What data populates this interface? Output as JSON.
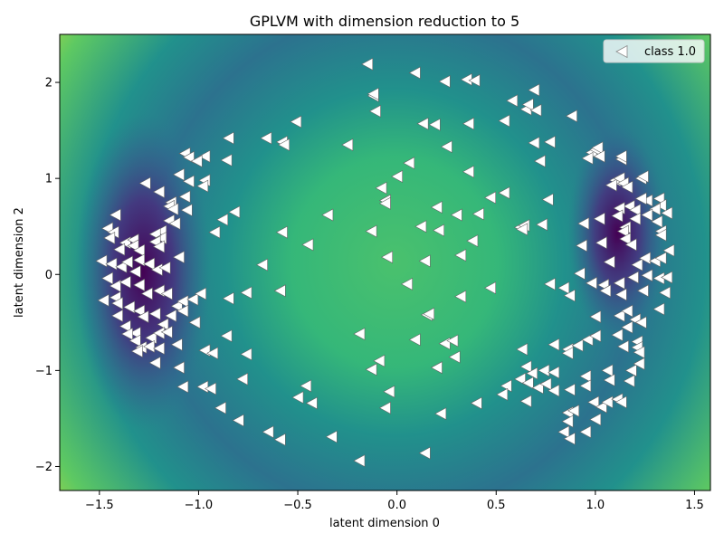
{
  "chart_data": {
    "type": "scatter",
    "title": "GPLVM with dimension reduction to 5",
    "xlabel": "latent dimension 0",
    "ylabel": "latent dimension 2",
    "xlim": [
      -1.7,
      1.58
    ],
    "ylim": [
      -2.25,
      2.5
    ],
    "xticks": [
      -1.5,
      -1.0,
      -0.5,
      0.0,
      0.5,
      1.0,
      1.5
    ],
    "xtick_labels": [
      "−1.5",
      "−1.0",
      "−0.5",
      "0.0",
      "0.5",
      "1.0",
      "1.5"
    ],
    "yticks": [
      -2,
      -1,
      0,
      1,
      2
    ],
    "ytick_labels": [
      "−2",
      "−1",
      "0",
      "1",
      "2"
    ],
    "grid": false,
    "background": "viridis density heatmap (dark purple at the ring near x≈±1.2, green center, yellow corners)",
    "marker": "left-pointing triangle, white fill, grey edge",
    "legend": {
      "placement": "top-right",
      "entries": [
        "class 1.0"
      ]
    },
    "series": [
      {
        "name": "class 1.0",
        "points": [
          [
            -0.15,
            2.19
          ],
          [
            0.09,
            2.1
          ],
          [
            0.24,
            2.01
          ],
          [
            0.35,
            2.03
          ],
          [
            0.39,
            2.02
          ],
          [
            0.58,
            1.81
          ],
          [
            0.69,
            1.92
          ],
          [
            -0.12,
            1.86
          ],
          [
            -0.12,
            1.88
          ],
          [
            -0.51,
            1.59
          ],
          [
            0.13,
            1.57
          ],
          [
            0.19,
            1.56
          ],
          [
            0.36,
            1.57
          ],
          [
            0.54,
            1.6
          ],
          [
            -0.11,
            1.7
          ],
          [
            0.65,
            1.72
          ],
          [
            0.66,
            1.77
          ],
          [
            0.7,
            1.71
          ],
          [
            0.88,
            1.65
          ],
          [
            -0.66,
            1.42
          ],
          [
            -0.58,
            1.38
          ],
          [
            -0.57,
            1.35
          ],
          [
            -0.25,
            1.35
          ],
          [
            0.25,
            1.33
          ],
          [
            0.69,
            1.37
          ],
          [
            0.77,
            1.38
          ],
          [
            -0.85,
            1.42
          ],
          [
            -1.07,
            1.26
          ],
          [
            -1.05,
            1.22
          ],
          [
            -0.97,
            1.23
          ],
          [
            -1.01,
            1.18
          ],
          [
            -0.86,
            1.19
          ],
          [
            0.06,
            1.16
          ],
          [
            0.72,
            1.18
          ],
          [
            0.98,
            1.27
          ],
          [
            1.0,
            1.3
          ],
          [
            1.01,
            1.32
          ],
          [
            -1.1,
            1.04
          ],
          [
            -1.05,
            0.97
          ],
          [
            -0.97,
            0.98
          ],
          [
            -0.98,
            0.92
          ],
          [
            -1.27,
            0.95
          ],
          [
            -1.2,
            0.86
          ],
          [
            0.0,
            1.02
          ],
          [
            0.36,
            1.07
          ],
          [
            0.96,
            1.21
          ],
          [
            1.02,
            1.23
          ],
          [
            1.13,
            1.2
          ],
          [
            1.13,
            1.23
          ],
          [
            1.1,
            0.98
          ],
          [
            1.08,
            0.93
          ],
          [
            1.12,
            1.0
          ],
          [
            1.14,
            0.95
          ],
          [
            1.23,
            1.0
          ],
          [
            1.24,
            1.02
          ],
          [
            1.16,
            0.91
          ],
          [
            -1.07,
            0.81
          ],
          [
            -1.14,
            0.75
          ],
          [
            -1.15,
            0.71
          ],
          [
            -1.06,
            0.67
          ],
          [
            -1.13,
            0.68
          ],
          [
            -0.82,
            0.65
          ],
          [
            -0.88,
            0.57
          ],
          [
            -0.35,
            0.62
          ],
          [
            -0.08,
            0.9
          ],
          [
            -0.06,
            0.77
          ],
          [
            -0.06,
            0.74
          ],
          [
            0.2,
            0.7
          ],
          [
            0.3,
            0.62
          ],
          [
            0.47,
            0.8
          ],
          [
            0.54,
            0.85
          ],
          [
            0.76,
            0.78
          ],
          [
            1.17,
            0.71
          ],
          [
            1.12,
            0.69
          ],
          [
            1.2,
            0.67
          ],
          [
            1.26,
            0.77
          ],
          [
            1.23,
            0.79
          ],
          [
            1.32,
            0.79
          ],
          [
            1.33,
            0.72
          ],
          [
            1.3,
            0.68
          ],
          [
            1.36,
            0.64
          ],
          [
            -1.42,
            0.62
          ],
          [
            -1.46,
            0.48
          ],
          [
            -1.43,
            0.44
          ],
          [
            -1.15,
            0.56
          ],
          [
            -1.12,
            0.53
          ],
          [
            -1.19,
            0.45
          ],
          [
            -1.22,
            0.42
          ],
          [
            -1.19,
            0.38
          ],
          [
            -0.92,
            0.44
          ],
          [
            -0.58,
            0.44
          ],
          [
            -0.13,
            0.45
          ],
          [
            0.12,
            0.5
          ],
          [
            0.21,
            0.46
          ],
          [
            0.41,
            0.63
          ],
          [
            0.62,
            0.49
          ],
          [
            0.64,
            0.51
          ],
          [
            0.63,
            0.47
          ],
          [
            0.73,
            0.52
          ],
          [
            0.94,
            0.53
          ],
          [
            1.02,
            0.58
          ],
          [
            1.11,
            0.61
          ],
          [
            1.15,
            0.49
          ],
          [
            1.14,
            0.45
          ],
          [
            1.2,
            0.58
          ],
          [
            1.26,
            0.62
          ],
          [
            1.31,
            0.55
          ],
          [
            1.33,
            0.45
          ],
          [
            1.33,
            0.41
          ],
          [
            -1.45,
            0.38
          ],
          [
            -1.37,
            0.33
          ],
          [
            -1.33,
            0.36
          ],
          [
            -1.4,
            0.26
          ],
          [
            -1.33,
            0.3
          ],
          [
            -1.3,
            0.25
          ],
          [
            -1.22,
            0.34
          ],
          [
            -1.2,
            0.29
          ],
          [
            -0.45,
            0.31
          ],
          [
            0.38,
            0.35
          ],
          [
            0.93,
            0.3
          ],
          [
            1.03,
            0.33
          ],
          [
            1.15,
            0.37
          ],
          [
            1.18,
            0.31
          ],
          [
            1.37,
            0.25
          ],
          [
            -1.49,
            0.14
          ],
          [
            -1.44,
            0.11
          ],
          [
            -1.39,
            0.08
          ],
          [
            -1.36,
            0.13
          ],
          [
            -1.3,
            0.15
          ],
          [
            -1.25,
            0.11
          ],
          [
            -1.21,
            0.05
          ],
          [
            -1.17,
            0.07
          ],
          [
            -1.1,
            0.18
          ],
          [
            -0.68,
            0.1
          ],
          [
            -0.05,
            0.18
          ],
          [
            0.14,
            0.14
          ],
          [
            0.32,
            0.2
          ],
          [
            1.07,
            0.13
          ],
          [
            1.21,
            0.1
          ],
          [
            1.25,
            0.17
          ],
          [
            1.3,
            0.14
          ],
          [
            1.33,
            0.17
          ],
          [
            -1.46,
            -0.04
          ],
          [
            -1.42,
            -0.12
          ],
          [
            -1.37,
            -0.08
          ],
          [
            -1.32,
            0.03
          ],
          [
            -1.3,
            -0.11
          ],
          [
            0.92,
            0.01
          ],
          [
            0.98,
            -0.09
          ],
          [
            1.04,
            -0.11
          ],
          [
            1.12,
            -0.09
          ],
          [
            1.19,
            -0.03
          ],
          [
            1.26,
            -0.01
          ],
          [
            1.32,
            -0.04
          ],
          [
            1.36,
            -0.03
          ],
          [
            -1.48,
            -0.27
          ],
          [
            -1.42,
            -0.24
          ],
          [
            -1.41,
            -0.3
          ],
          [
            -1.35,
            -0.34
          ],
          [
            -1.3,
            -0.38
          ],
          [
            -1.26,
            -0.2
          ],
          [
            -1.2,
            -0.17
          ],
          [
            -1.16,
            -0.2
          ],
          [
            -1.11,
            -0.33
          ],
          [
            -1.08,
            -0.28
          ],
          [
            -1.03,
            -0.26
          ],
          [
            -0.99,
            -0.2
          ],
          [
            -0.85,
            -0.25
          ],
          [
            -0.76,
            -0.19
          ],
          [
            -0.59,
            -0.17
          ],
          [
            0.05,
            -0.1
          ],
          [
            0.32,
            -0.23
          ],
          [
            0.47,
            -0.14
          ],
          [
            0.77,
            -0.1
          ],
          [
            0.84,
            -0.14
          ],
          [
            0.87,
            -0.22
          ],
          [
            1.05,
            -0.17
          ],
          [
            1.13,
            -0.21
          ],
          [
            1.24,
            -0.17
          ],
          [
            1.35,
            -0.19
          ],
          [
            -1.41,
            -0.43
          ],
          [
            -1.37,
            -0.54
          ],
          [
            -1.32,
            -0.61
          ],
          [
            -1.28,
            -0.44
          ],
          [
            -1.22,
            -0.41
          ],
          [
            -1.18,
            -0.52
          ],
          [
            -1.14,
            -0.43
          ],
          [
            -1.08,
            -0.38
          ],
          [
            -1.02,
            -0.5
          ],
          [
            0.15,
            -0.42
          ],
          [
            0.16,
            -0.41
          ],
          [
            1.0,
            -0.44
          ],
          [
            1.12,
            -0.43
          ],
          [
            1.16,
            -0.38
          ],
          [
            1.2,
            -0.47
          ],
          [
            1.23,
            -0.5
          ],
          [
            1.32,
            -0.36
          ],
          [
            -1.36,
            -0.62
          ],
          [
            -1.32,
            -0.69
          ],
          [
            -1.24,
            -0.66
          ],
          [
            -1.2,
            -0.61
          ],
          [
            -1.16,
            -0.6
          ],
          [
            -1.29,
            -0.76
          ],
          [
            -1.25,
            -0.75
          ],
          [
            -1.2,
            -0.77
          ],
          [
            -1.11,
            -0.73
          ],
          [
            -0.97,
            -0.79
          ],
          [
            -0.86,
            -0.64
          ],
          [
            -0.76,
            -0.83
          ],
          [
            -0.19,
            -0.62
          ],
          [
            0.09,
            -0.68
          ],
          [
            0.24,
            -0.72
          ],
          [
            0.28,
            -0.69
          ],
          [
            0.63,
            -0.78
          ],
          [
            0.79,
            -0.73
          ],
          [
            0.86,
            -0.78
          ],
          [
            0.86,
            -0.82
          ],
          [
            0.91,
            -0.74
          ],
          [
            0.96,
            -0.68
          ],
          [
            1.0,
            -0.64
          ],
          [
            1.11,
            -0.63
          ],
          [
            1.16,
            -0.55
          ],
          [
            1.14,
            -0.75
          ],
          [
            1.21,
            -0.7
          ],
          [
            1.21,
            -0.76
          ],
          [
            1.22,
            -0.81
          ],
          [
            -1.31,
            -0.8
          ],
          [
            -1.22,
            -0.92
          ],
          [
            -1.1,
            -0.97
          ],
          [
            -0.93,
            -0.82
          ],
          [
            -0.78,
            -1.09
          ],
          [
            -0.13,
            -0.99
          ],
          [
            -0.09,
            -0.9
          ],
          [
            0.2,
            -0.97
          ],
          [
            0.29,
            -0.86
          ],
          [
            0.65,
            -0.96
          ],
          [
            0.68,
            -1.03
          ],
          [
            0.74,
            -1.0
          ],
          [
            0.79,
            -1.02
          ],
          [
            0.95,
            -1.06
          ],
          [
            1.06,
            -1.0
          ],
          [
            1.18,
            -1.0
          ],
          [
            1.22,
            -0.93
          ],
          [
            -1.08,
            -1.17
          ],
          [
            -0.98,
            -1.17
          ],
          [
            -0.94,
            -1.19
          ],
          [
            -0.46,
            -1.16
          ],
          [
            -0.5,
            -1.28
          ],
          [
            -0.43,
            -1.34
          ],
          [
            -0.04,
            -1.22
          ],
          [
            0.55,
            -1.16
          ],
          [
            0.62,
            -1.09
          ],
          [
            0.66,
            -1.13
          ],
          [
            0.71,
            -1.18
          ],
          [
            0.75,
            -1.14
          ],
          [
            0.79,
            -1.21
          ],
          [
            0.87,
            -1.2
          ],
          [
            0.95,
            -1.16
          ],
          [
            1.07,
            -1.1
          ],
          [
            1.17,
            -1.11
          ],
          [
            -0.89,
            -1.39
          ],
          [
            -0.8,
            -1.52
          ],
          [
            -0.06,
            -1.39
          ],
          [
            0.22,
            -1.45
          ],
          [
            0.4,
            -1.34
          ],
          [
            0.53,
            -1.25
          ],
          [
            0.65,
            -1.32
          ],
          [
            0.86,
            -1.44
          ],
          [
            0.89,
            -1.42
          ],
          [
            0.99,
            -1.33
          ],
          [
            1.03,
            -1.38
          ],
          [
            1.06,
            -1.33
          ],
          [
            1.11,
            -1.3
          ],
          [
            1.13,
            -1.33
          ],
          [
            1.0,
            -1.51
          ],
          [
            -0.65,
            -1.64
          ],
          [
            -0.59,
            -1.72
          ],
          [
            -0.33,
            -1.69
          ],
          [
            0.86,
            -1.53
          ],
          [
            0.84,
            -1.64
          ],
          [
            0.87,
            -1.71
          ],
          [
            0.95,
            -1.64
          ],
          [
            -0.19,
            -1.94
          ],
          [
            0.14,
            -1.86
          ]
        ]
      }
    ]
  }
}
